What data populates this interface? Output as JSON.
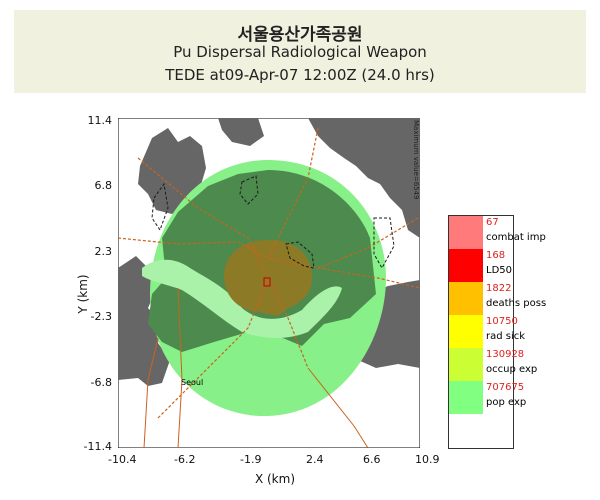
{
  "header": {
    "title": "서울용산가족공원",
    "subtitle": "Pu Dispersal Radiological Weapon",
    "time_line": "TEDE at09-Apr-07 12:00Z (24.0 hrs)"
  },
  "plot": {
    "x_label": "X (km)",
    "y_label": "Y (km)",
    "x_ticks": [
      "-10.4",
      "-6.2",
      "-1.9",
      "2.4",
      "6.6",
      "10.9"
    ],
    "y_ticks": [
      "11.4",
      "6.8",
      "2.3",
      "-2.3",
      "-6.8",
      "-11.4"
    ],
    "max_value_note": "Maximum value=6549",
    "city_label": "Seoul"
  },
  "legend": [
    {
      "value": "67",
      "label": "combat imp",
      "color": "#ff7b7b"
    },
    {
      "value": "168",
      "label": "LD50",
      "color": "#ff0000"
    },
    {
      "value": "1822",
      "label": "deaths poss",
      "color": "#ffc000"
    },
    {
      "value": "10750",
      "label": "rad sick",
      "color": "#ffff00"
    },
    {
      "value": "130928",
      "label": "occup exp",
      "color": "#ccff33"
    },
    {
      "value": "707675",
      "label": "pop exp",
      "color": "#80ff80"
    },
    {
      "value": "",
      "label": "",
      "color": "#ffffff"
    }
  ],
  "colors": {
    "land": "#666666",
    "pop_exp_zone": "#88f088",
    "occup_exp_zone": "#4d8a4d",
    "deaths_poss_zone": "#8d7a26"
  }
}
